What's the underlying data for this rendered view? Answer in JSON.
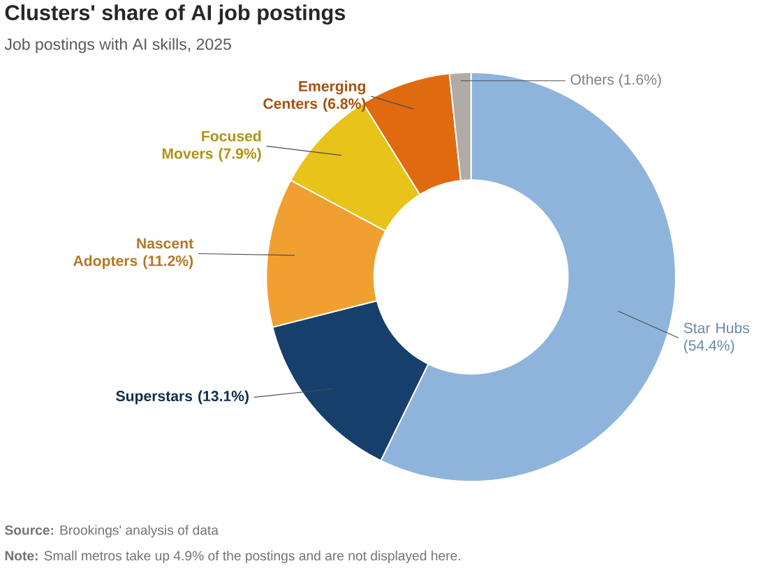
{
  "chart_data": {
    "type": "donut",
    "title": "Clusters' share of AI job postings",
    "subtitle": "Job postings with AI skills, 2025",
    "categories": [
      "Star Hubs",
      "Superstars",
      "Nascent Adopters",
      "Focused Movers",
      "Emerging Centers",
      "Others"
    ],
    "values": [
      54.4,
      13.1,
      11.2,
      7.9,
      6.8,
      1.6
    ],
    "colors": [
      "#8fb4dc",
      "#173f6b",
      "#f0a030",
      "#e8c319",
      "#e06a10",
      "#b0aba5"
    ],
    "value_labels": [
      "(54.4%)",
      "(13.1%)",
      "(11.2%)",
      "(7.9%)",
      "(6.8%)",
      "(1.6%)"
    ],
    "annotations": [
      "**Source:** Brookings' analysis of data",
      "**Note:** Small metros take up 4.9% of the postings and are not displayed here."
    ]
  }
}
